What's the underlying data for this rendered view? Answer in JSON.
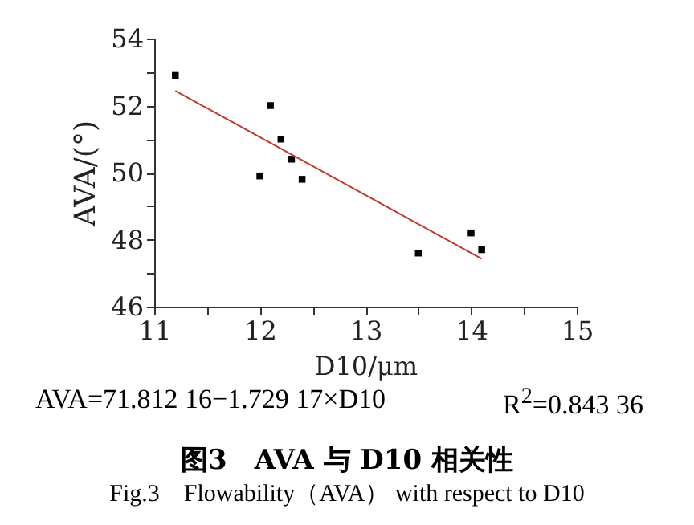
{
  "chart_data": {
    "type": "scatter",
    "title": "图3　AVA 与 D10 相关性",
    "subtitle": "Fig.3　Flowability（AVA） with respect to D10",
    "xlabel": "D10/μm",
    "ylabel": "AVA/(°)",
    "annotations": [
      "AVA=71.812 16−1.729 17×D10",
      "R$^{2}$=0.843 36"
    ],
    "marker": "square",
    "grid": false,
    "xlim": [
      11,
      15
    ],
    "xticks": [
      11,
      {
        "value": 11.5,
        "label": null
      },
      12,
      {
        "value": 12.5,
        "label": null
      },
      13,
      {
        "value": 13.5,
        "label": null
      },
      14,
      {
        "value": 14.5,
        "label": null
      },
      15
    ],
    "ylim": [
      46,
      54
    ],
    "yticks": [
      46,
      {
        "value": 47,
        "label": null
      },
      48,
      {
        "value": 49,
        "label": null
      },
      50,
      {
        "value": 51,
        "label": null
      },
      52,
      {
        "value": 53,
        "label": null
      },
      54
    ],
    "series": [
      {
        "type": "scatter",
        "color": "#000000",
        "x": [
          11.2,
          12.0,
          12.1,
          12.2,
          12.3,
          12.4,
          13.5,
          14.0,
          14.1
        ],
        "values": [
          52.9,
          49.9,
          52.0,
          51.0,
          50.4,
          49.8,
          47.6,
          48.2,
          47.7
        ]
      },
      {
        "type": "line",
        "marker": "none",
        "color": "#c0392b",
        "line_style": "solid",
        "x": [
          11.2,
          14.1
        ],
        "values": [
          52.44,
          47.43
        ]
      }
    ]
  }
}
